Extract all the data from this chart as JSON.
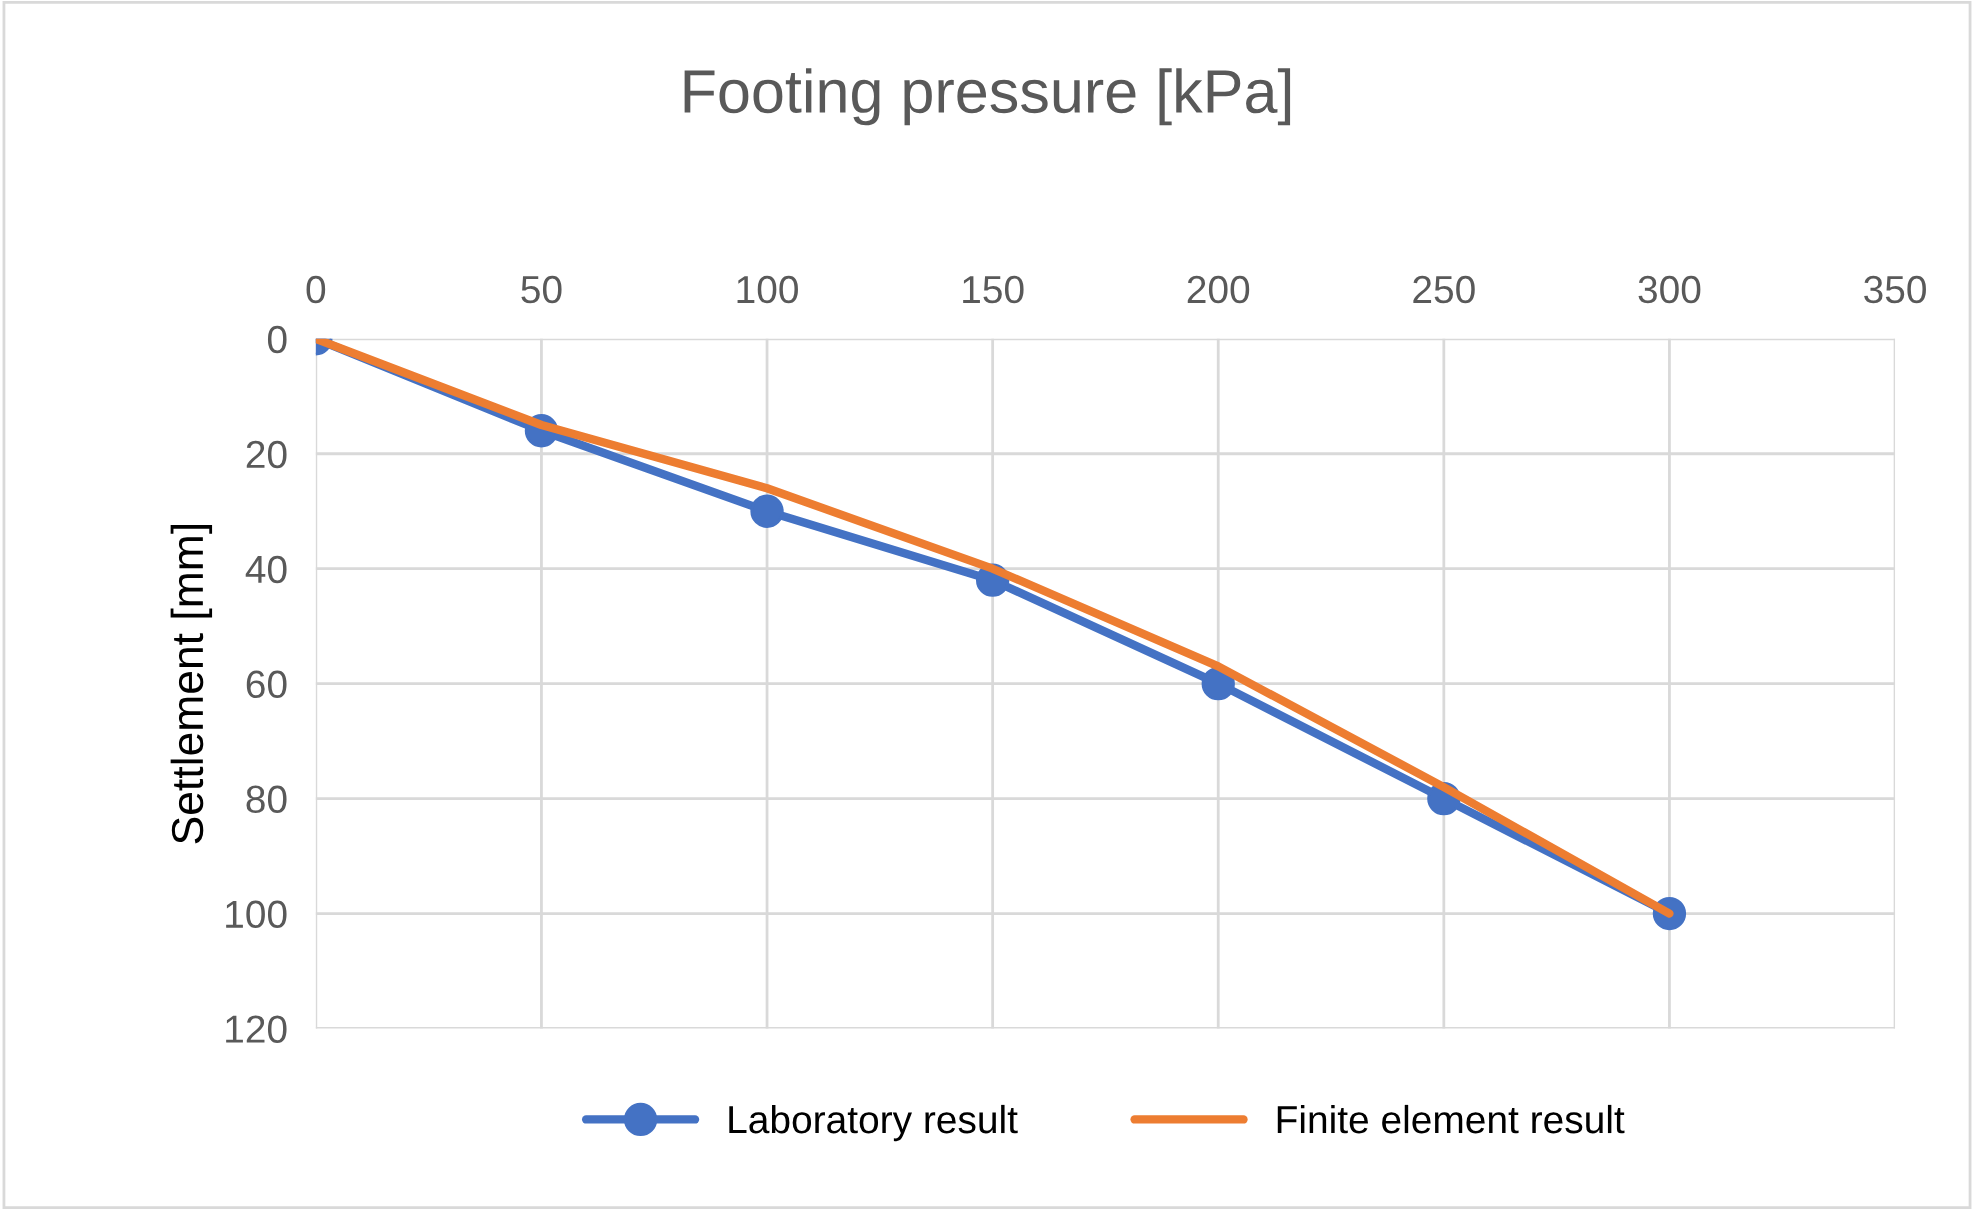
{
  "chart_data": {
    "type": "line",
    "title": "Footing pressure [kPa]",
    "ylabel": "Settlement [mm]",
    "x": [
      0,
      50,
      100,
      150,
      200,
      250,
      300
    ],
    "series": [
      {
        "name": "Laboratory result",
        "color": "#4472c4",
        "values": [
          0,
          16,
          30,
          42,
          60,
          80,
          100
        ],
        "marker": "circle"
      },
      {
        "name": "Finite element result",
        "color": "#ed7d31",
        "values": [
          0,
          15,
          26,
          40,
          57,
          78,
          100
        ],
        "marker": "none"
      }
    ],
    "xlim": [
      0,
      350
    ],
    "xticks": [
      0,
      50,
      100,
      150,
      200,
      250,
      300,
      350
    ],
    "ylim": [
      120,
      0
    ],
    "yticks": [
      0,
      20,
      40,
      60,
      80,
      100,
      120
    ],
    "grid": true,
    "legend": "bottom",
    "line_style": "solid"
  }
}
